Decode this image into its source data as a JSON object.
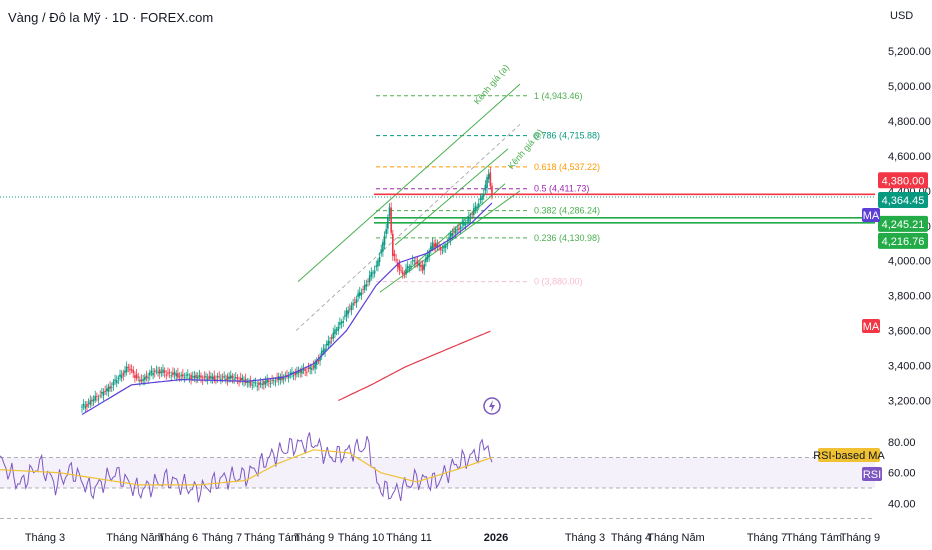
{
  "header": {
    "title": "Vàng / Đô la Mỹ · 1D · FOREX.com",
    "currency": "USD"
  },
  "colors": {
    "up": "#089981",
    "down": "#f23645",
    "ma_fast": "#5b3fd6",
    "ma_slow": "#e5394a",
    "rsi": "#7e57c2",
    "rsi_ma": "#f0c133",
    "channel": "#4caf50"
  },
  "chart_data": {
    "type": "candlestick",
    "title": "Vàng / Đô la Mỹ · 1D · FOREX.com",
    "price_axis": {
      "unit": "USD",
      "ticks": [
        "5,200.00",
        "5,000.00",
        "4,800.00",
        "4,600.00",
        "4,400.00",
        "4,200.00",
        "4,000.00",
        "3,800.00",
        "3,600.00",
        "3,400.00",
        "3,200.00"
      ],
      "range": [
        3060,
        5320
      ]
    },
    "time_axis": [
      "Tháng 3",
      "Tháng Năm",
      "Tháng 6",
      "Tháng 7",
      "Tháng Tám",
      "Tháng 9",
      "Tháng 10",
      "Tháng 11",
      "2026",
      "Tháng 3",
      "Tháng 4",
      "Tháng Năm",
      "Tháng 7",
      "Tháng Tám",
      "Tháng 9"
    ],
    "price_path": [
      [
        0,
        3160
      ],
      [
        15,
        3260
      ],
      [
        28,
        3390
      ],
      [
        35,
        3310
      ],
      [
        44,
        3370
      ],
      [
        60,
        3340
      ],
      [
        75,
        3330
      ],
      [
        92,
        3330
      ],
      [
        105,
        3290
      ],
      [
        118,
        3320
      ],
      [
        125,
        3345
      ],
      [
        140,
        3390
      ],
      [
        148,
        3520
      ],
      [
        160,
        3700
      ],
      [
        170,
        3840
      ],
      [
        178,
        3970
      ],
      [
        182,
        4090
      ],
      [
        186,
        4300
      ],
      [
        188,
        4030
      ],
      [
        194,
        3920
      ],
      [
        200,
        4000
      ],
      [
        206,
        3960
      ],
      [
        212,
        4100
      ],
      [
        218,
        4060
      ],
      [
        224,
        4160
      ],
      [
        232,
        4220
      ],
      [
        238,
        4300
      ],
      [
        243,
        4390
      ],
      [
        246,
        4500
      ],
      [
        248,
        4380
      ]
    ],
    "ma_fast": [
      [
        0,
        3120
      ],
      [
        30,
        3290
      ],
      [
        60,
        3320
      ],
      [
        100,
        3310
      ],
      [
        123,
        3335
      ],
      [
        140,
        3410
      ],
      [
        160,
        3600
      ],
      [
        178,
        3860
      ],
      [
        192,
        3990
      ],
      [
        208,
        4040
      ],
      [
        224,
        4130
      ],
      [
        236,
        4220
      ],
      [
        248,
        4330
      ]
    ],
    "ma_slow": [
      [
        155,
        3200
      ],
      [
        175,
        3290
      ],
      [
        195,
        3390
      ],
      [
        215,
        3470
      ],
      [
        235,
        3550
      ],
      [
        248,
        3600
      ]
    ],
    "fibonacci": [
      {
        "level": "1",
        "value": 4943.46,
        "label": "1 (4,943.46)",
        "color": "#4caf50"
      },
      {
        "level": "0.786",
        "value": 4715.88,
        "label": "0.786 (4,715.88)",
        "color": "#089981"
      },
      {
        "level": "0.618",
        "value": 4537.22,
        "label": "0.618 (4,537.22)",
        "color": "#ff9800"
      },
      {
        "level": "0.5",
        "value": 4411.73,
        "label": "0.5 (4,411.73)",
        "color": "#9c27b0"
      },
      {
        "level": "0.382",
        "value": 4286.24,
        "label": "0.382 (4,286.24)",
        "color": "#4caf50"
      },
      {
        "level": "0.236",
        "value": 4130.98,
        "label": "0.236 (4,130.98)",
        "color": "#4caf50"
      },
      {
        "level": "0",
        "value": 3880.0,
        "label": "0 (3,880.00)",
        "color": "#f8bbd0"
      }
    ],
    "channels": [
      {
        "label": "Kênh giá (a)"
      },
      {
        "label": "Kênh giá (b)"
      }
    ],
    "horizontal_lines": [
      {
        "value": 4380.0,
        "label": "4,380.00",
        "color": "#f23645"
      },
      {
        "value": 4245.21,
        "label": "4,245.21",
        "color": "#22ab47"
      },
      {
        "value": 4216.76,
        "label": "4,216.76",
        "color": "#22ab47"
      }
    ],
    "last_price": {
      "value": 4364.45,
      "label": "4,364.45"
    },
    "ma_tags": [
      {
        "label": "MA",
        "color": "#5b3fd6"
      },
      {
        "label": "MA",
        "color": "#f23645"
      }
    ],
    "rsi": {
      "ticks": [
        "80.00",
        "60.00",
        "40.00"
      ],
      "range": [
        31,
        88
      ],
      "upper": 70,
      "lower": 50,
      "values": [
        [
          0,
          68
        ],
        [
          10,
          52
        ],
        [
          20,
          66
        ],
        [
          28,
          52
        ],
        [
          36,
          62
        ],
        [
          46,
          48
        ],
        [
          58,
          60
        ],
        [
          70,
          48
        ],
        [
          84,
          56
        ],
        [
          100,
          48
        ],
        [
          112,
          56
        ],
        [
          124,
          58
        ],
        [
          136,
          70
        ],
        [
          148,
          78
        ],
        [
          158,
          80
        ],
        [
          166,
          70
        ],
        [
          176,
          74
        ],
        [
          186,
          78
        ],
        [
          190,
          52
        ],
        [
          198,
          46
        ],
        [
          210,
          56
        ],
        [
          220,
          54
        ],
        [
          230,
          66
        ],
        [
          240,
          72
        ],
        [
          246,
          80
        ],
        [
          248,
          60
        ]
      ],
      "ma_values": [
        [
          0,
          62
        ],
        [
          30,
          60
        ],
        [
          70,
          52
        ],
        [
          100,
          52
        ],
        [
          124,
          55
        ],
        [
          140,
          66
        ],
        [
          158,
          75
        ],
        [
          176,
          73
        ],
        [
          192,
          60
        ],
        [
          210,
          54
        ],
        [
          230,
          62
        ],
        [
          248,
          70
        ]
      ],
      "ma_label": "RSI-based MA",
      "label": "RSI"
    }
  }
}
